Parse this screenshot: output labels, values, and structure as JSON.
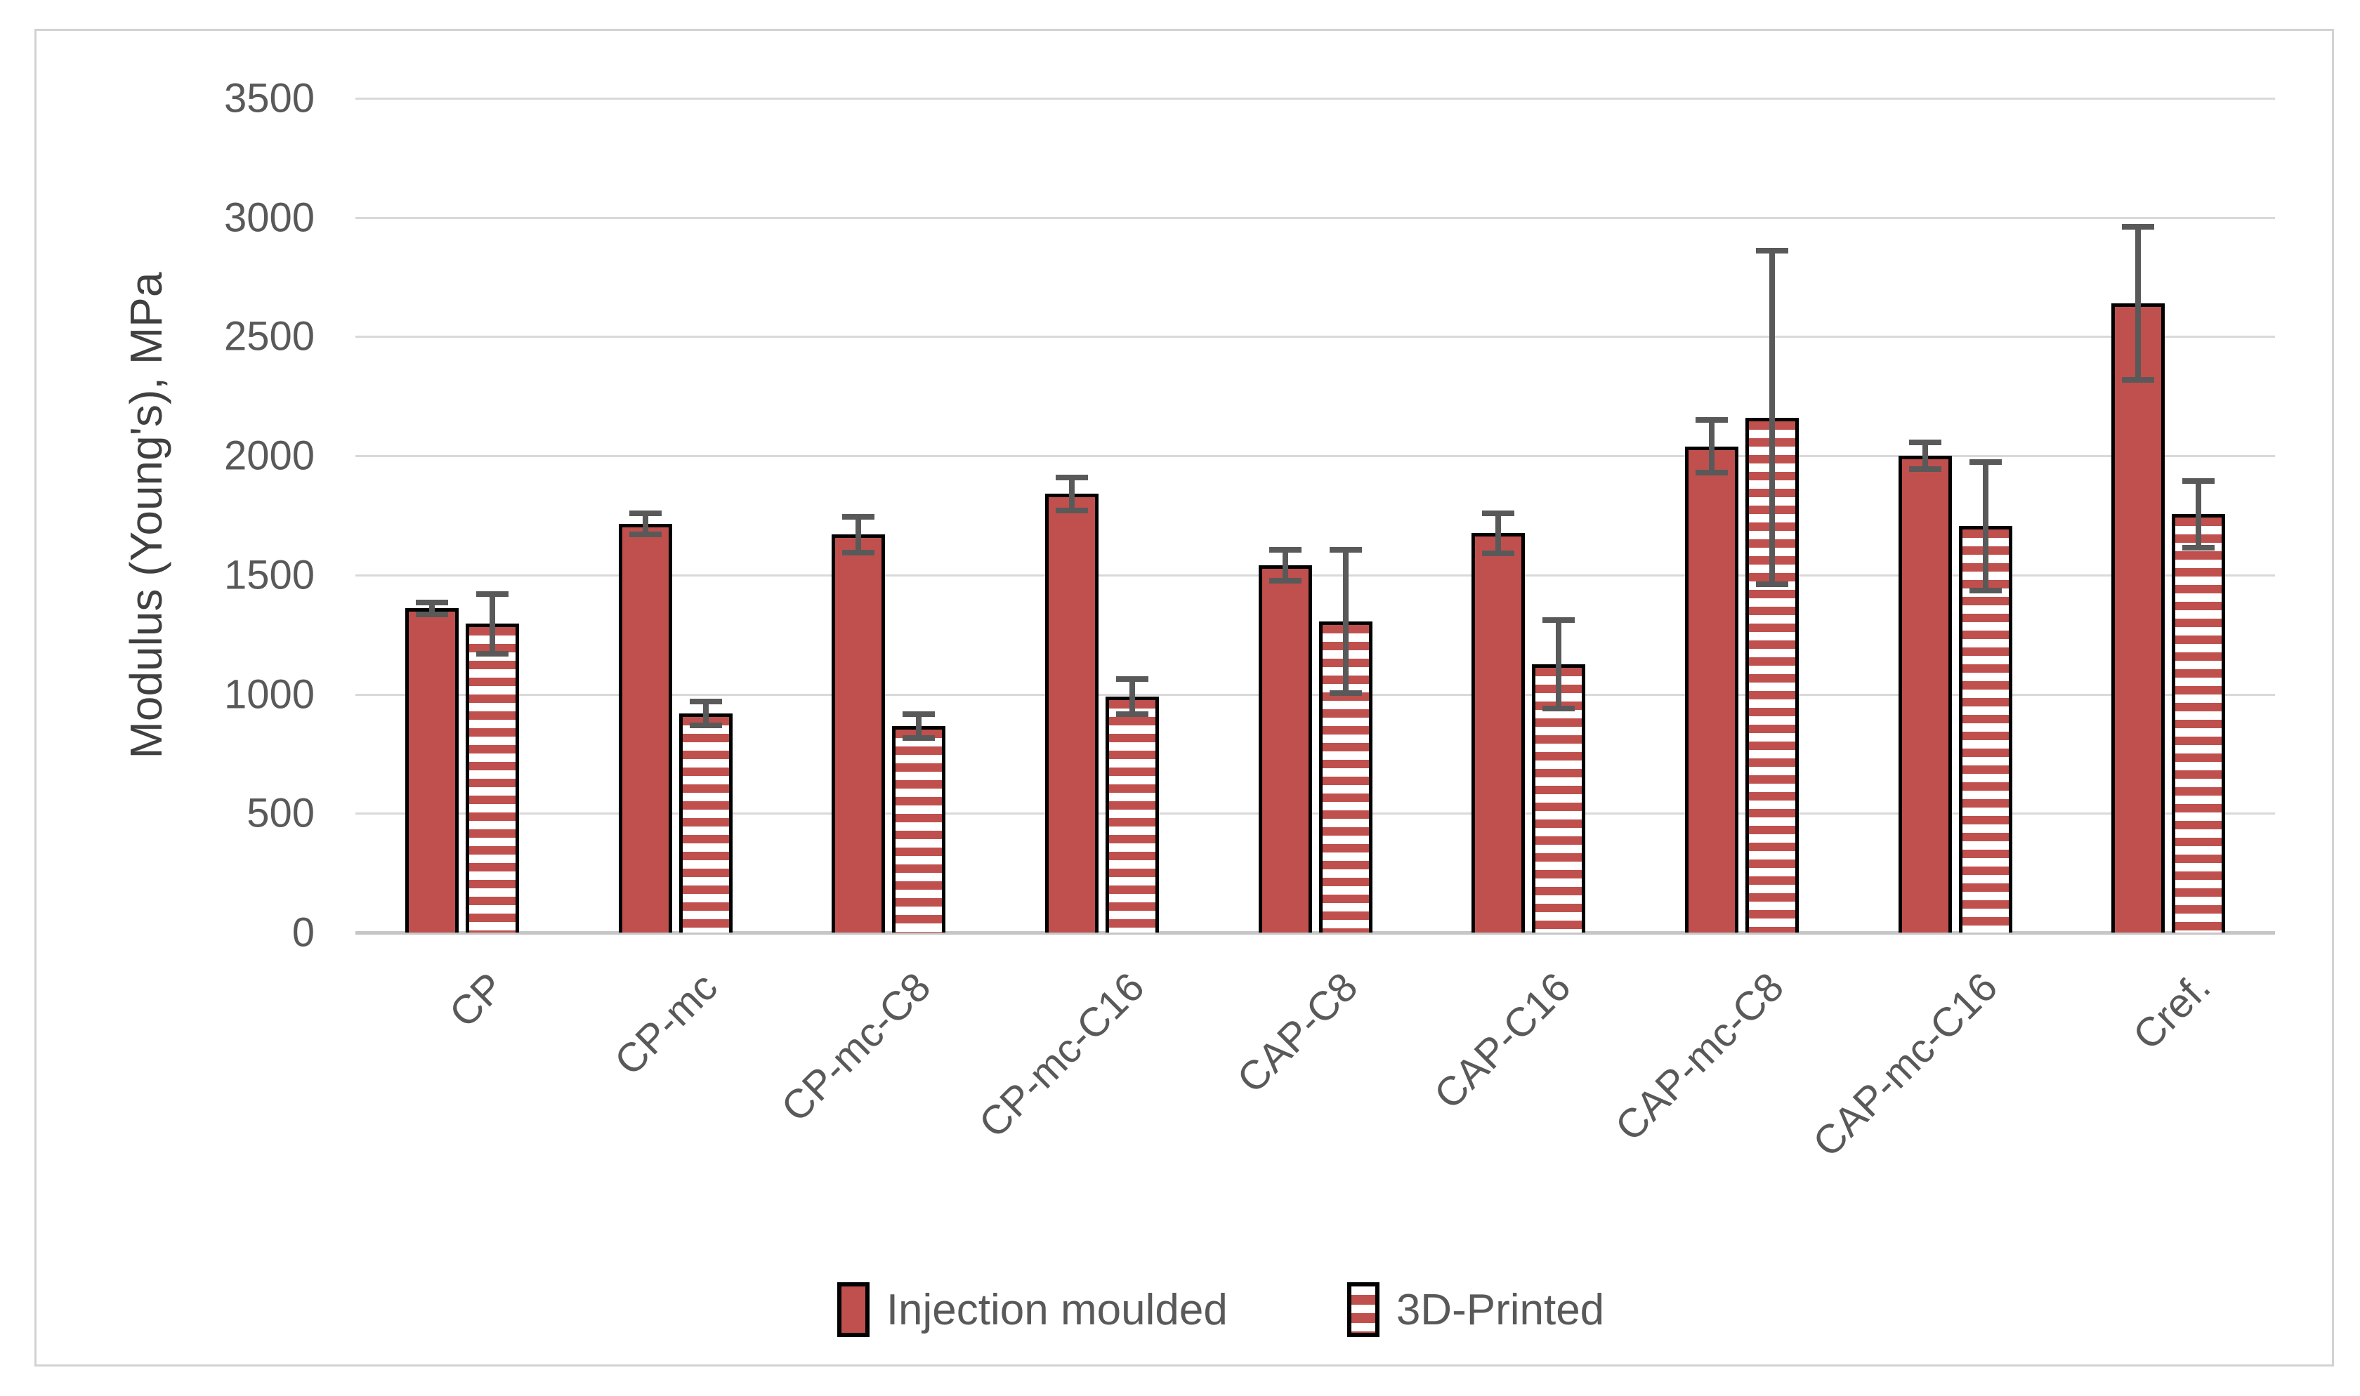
{
  "chart_data": {
    "type": "bar",
    "title": "",
    "ylabel": "Modulus (Young's), MPa",
    "xlabel": "",
    "categories": [
      "CP",
      "CP-mc",
      "CP-mc-C8",
      "CP-mc-C16",
      "CAP-C8",
      "CAP-C16",
      "CAP-mc-C8",
      "CAP-mc-C16",
      "Cref."
    ],
    "series": [
      {
        "name": "Injection moulded",
        "pattern": "solid",
        "values": [
          1360,
          1715,
          1670,
          1840,
          1540,
          1675,
          2040,
          2000,
          2640
        ],
        "errors": [
          25,
          45,
          75,
          70,
          65,
          85,
          110,
          55,
          320
        ]
      },
      {
        "name": "3D-Printed",
        "pattern": "striped",
        "values": [
          1295,
          920,
          865,
          990,
          1305,
          1125,
          2160,
          1705,
          1755
        ],
        "errors": [
          125,
          50,
          50,
          75,
          300,
          185,
          700,
          270,
          140
        ]
      }
    ],
    "ylim": [
      0,
      3500
    ],
    "yticks": [
      0,
      500,
      1000,
      1500,
      2000,
      2500,
      3000,
      3500
    ],
    "grid": true,
    "legend_position": "bottom",
    "error_bars": true,
    "colors": {
      "bar_fill": "#c0504d",
      "bar_border": "#000000",
      "stripe_bg": "#ffffff",
      "error_bar": "#595959",
      "gridline": "#d9d9d9",
      "axis_line": "#c6c6c6",
      "tick_text": "#595959",
      "axis_title_text": "#404040",
      "frame_border": "#d2d2d2",
      "background": "#ffffff"
    }
  }
}
